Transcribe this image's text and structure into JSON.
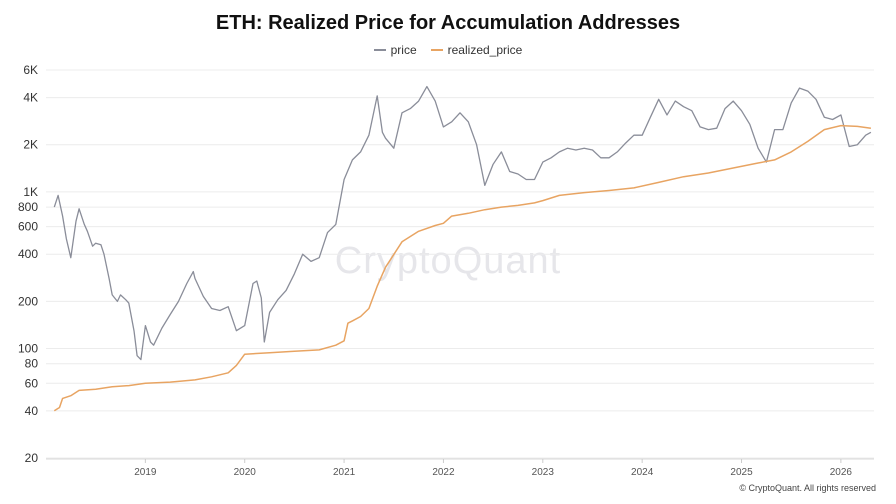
{
  "chart_data": {
    "type": "line",
    "title": "ETH: Realized Price for Accumulation Addresses",
    "xlabel": "",
    "ylabel": "",
    "yscale": "log",
    "ylim": [
      20,
      6000
    ],
    "xlim": [
      "2018-01",
      "2026-05"
    ],
    "grid": "horizontal",
    "legend_position": "top-center",
    "y_ticks": [
      20,
      40,
      60,
      80,
      100,
      200,
      400,
      600,
      800,
      1000,
      2000,
      4000,
      6000
    ],
    "y_tick_labels": [
      "20",
      "40",
      "60",
      "80",
      "100",
      "200",
      "400",
      "600",
      "800",
      "1K",
      "2K",
      "4K",
      "6K"
    ],
    "x_tick_labels": [
      "2019",
      "2020",
      "2021",
      "2022",
      "2023",
      "2024",
      "2025",
      "2026"
    ],
    "series": [
      {
        "name": "price",
        "color": "#8a8d99",
        "points": [
          [
            "2018-02",
            800
          ],
          [
            "2018-02-15",
            950
          ],
          [
            "2018-03",
            700
          ],
          [
            "2018-03-15",
            500
          ],
          [
            "2018-04",
            380
          ],
          [
            "2018-04-20",
            650
          ],
          [
            "2018-05",
            780
          ],
          [
            "2018-05-20",
            620
          ],
          [
            "2018-06",
            560
          ],
          [
            "2018-06-20",
            450
          ],
          [
            "2018-07",
            470
          ],
          [
            "2018-07-20",
            460
          ],
          [
            "2018-08",
            400
          ],
          [
            "2018-08-20",
            280
          ],
          [
            "2018-09",
            220
          ],
          [
            "2018-09-20",
            200
          ],
          [
            "2018-10",
            220
          ],
          [
            "2018-10-20",
            205
          ],
          [
            "2018-11",
            195
          ],
          [
            "2018-11-20",
            130
          ],
          [
            "2018-12",
            90
          ],
          [
            "2018-12-15",
            85
          ],
          [
            "2019-01",
            140
          ],
          [
            "2019-01-20",
            110
          ],
          [
            "2019-02",
            105
          ],
          [
            "2019-03",
            135
          ],
          [
            "2019-04",
            165
          ],
          [
            "2019-05",
            200
          ],
          [
            "2019-06",
            260
          ],
          [
            "2019-06-25",
            310
          ],
          [
            "2019-07",
            280
          ],
          [
            "2019-08",
            215
          ],
          [
            "2019-09",
            180
          ],
          [
            "2019-10",
            175
          ],
          [
            "2019-11",
            185
          ],
          [
            "2019-12",
            130
          ],
          [
            "2020-01",
            140
          ],
          [
            "2020-02",
            260
          ],
          [
            "2020-02-15",
            270
          ],
          [
            "2020-03",
            210
          ],
          [
            "2020-03-12",
            110
          ],
          [
            "2020-04",
            170
          ],
          [
            "2020-05",
            205
          ],
          [
            "2020-06",
            235
          ],
          [
            "2020-07",
            300
          ],
          [
            "2020-08",
            400
          ],
          [
            "2020-09",
            360
          ],
          [
            "2020-10",
            380
          ],
          [
            "2020-11",
            550
          ],
          [
            "2020-12",
            620
          ],
          [
            "2021-01",
            1200
          ],
          [
            "2021-02",
            1600
          ],
          [
            "2021-03",
            1800
          ],
          [
            "2021-04",
            2300
          ],
          [
            "2021-05",
            4100
          ],
          [
            "2021-05-20",
            2400
          ],
          [
            "2021-06",
            2200
          ],
          [
            "2021-07",
            1900
          ],
          [
            "2021-08",
            3200
          ],
          [
            "2021-09",
            3400
          ],
          [
            "2021-10",
            3800
          ],
          [
            "2021-11",
            4700
          ],
          [
            "2021-12",
            3800
          ],
          [
            "2022-01",
            2600
          ],
          [
            "2022-02",
            2800
          ],
          [
            "2022-03",
            3200
          ],
          [
            "2022-04",
            2800
          ],
          [
            "2022-05",
            2000
          ],
          [
            "2022-06",
            1100
          ],
          [
            "2022-07",
            1500
          ],
          [
            "2022-08",
            1800
          ],
          [
            "2022-09",
            1350
          ],
          [
            "2022-10",
            1300
          ],
          [
            "2022-11",
            1200
          ],
          [
            "2022-12",
            1200
          ],
          [
            "2023-01",
            1550
          ],
          [
            "2023-02",
            1650
          ],
          [
            "2023-03",
            1800
          ],
          [
            "2023-04",
            1900
          ],
          [
            "2023-05",
            1850
          ],
          [
            "2023-06",
            1900
          ],
          [
            "2023-07",
            1850
          ],
          [
            "2023-08",
            1650
          ],
          [
            "2023-09",
            1650
          ],
          [
            "2023-10",
            1800
          ],
          [
            "2023-11",
            2050
          ],
          [
            "2023-12",
            2300
          ],
          [
            "2024-01",
            2300
          ],
          [
            "2024-02",
            3000
          ],
          [
            "2024-03",
            3900
          ],
          [
            "2024-04",
            3100
          ],
          [
            "2024-05",
            3800
          ],
          [
            "2024-06",
            3500
          ],
          [
            "2024-07",
            3300
          ],
          [
            "2024-08",
            2600
          ],
          [
            "2024-09",
            2500
          ],
          [
            "2024-10",
            2550
          ],
          [
            "2024-11",
            3400
          ],
          [
            "2024-12",
            3800
          ],
          [
            "2025-01",
            3300
          ],
          [
            "2025-02",
            2700
          ],
          [
            "2025-03",
            1900
          ],
          [
            "2025-04",
            1550
          ],
          [
            "2025-05",
            2500
          ],
          [
            "2025-06",
            2500
          ],
          [
            "2025-07",
            3700
          ],
          [
            "2025-08",
            4600
          ],
          [
            "2025-09",
            4400
          ],
          [
            "2025-10",
            3900
          ],
          [
            "2025-11",
            3000
          ],
          [
            "2025-12",
            2900
          ],
          [
            "2026-01",
            3100
          ],
          [
            "2026-02",
            1950
          ],
          [
            "2026-03",
            2000
          ],
          [
            "2026-04",
            2300
          ],
          [
            "2026-04-20",
            2400
          ]
        ]
      },
      {
        "name": "realized_price",
        "color": "#e8a462",
        "points": [
          [
            "2018-02",
            40
          ],
          [
            "2018-02-20",
            42
          ],
          [
            "2018-03",
            48
          ],
          [
            "2018-04",
            50
          ],
          [
            "2018-05",
            54
          ],
          [
            "2018-07",
            55
          ],
          [
            "2018-09",
            57
          ],
          [
            "2018-11",
            58
          ],
          [
            "2019-01",
            60
          ],
          [
            "2019-04",
            61
          ],
          [
            "2019-07",
            63
          ],
          [
            "2019-09",
            66
          ],
          [
            "2019-11",
            70
          ],
          [
            "2019-12",
            78
          ],
          [
            "2020-01",
            92
          ],
          [
            "2020-04",
            94
          ],
          [
            "2020-07",
            96
          ],
          [
            "2020-10",
            98
          ],
          [
            "2020-12",
            105
          ],
          [
            "2021-01",
            112
          ],
          [
            "2021-01-15",
            145
          ],
          [
            "2021-02",
            150
          ],
          [
            "2021-03",
            160
          ],
          [
            "2021-04",
            180
          ],
          [
            "2021-05",
            250
          ],
          [
            "2021-06",
            330
          ],
          [
            "2021-08",
            480
          ],
          [
            "2021-10",
            560
          ],
          [
            "2021-12",
            610
          ],
          [
            "2022-01",
            630
          ],
          [
            "2022-02",
            700
          ],
          [
            "2022-04",
            730
          ],
          [
            "2022-06",
            770
          ],
          [
            "2022-08",
            800
          ],
          [
            "2022-10",
            820
          ],
          [
            "2022-12",
            850
          ],
          [
            "2023-01",
            880
          ],
          [
            "2023-03",
            950
          ],
          [
            "2023-06",
            990
          ],
          [
            "2023-09",
            1020
          ],
          [
            "2023-12",
            1060
          ],
          [
            "2024-03",
            1150
          ],
          [
            "2024-06",
            1250
          ],
          [
            "2024-09",
            1320
          ],
          [
            "2024-12",
            1420
          ],
          [
            "2025-03",
            1530
          ],
          [
            "2025-05",
            1600
          ],
          [
            "2025-07",
            1800
          ],
          [
            "2025-09",
            2100
          ],
          [
            "2025-11",
            2500
          ],
          [
            "2026-01",
            2650
          ],
          [
            "2026-03",
            2620
          ],
          [
            "2026-04-20",
            2550
          ]
        ]
      }
    ]
  },
  "watermark": "CryptoQuant",
  "copyright": "© CryptoQuant. All rights reserved"
}
